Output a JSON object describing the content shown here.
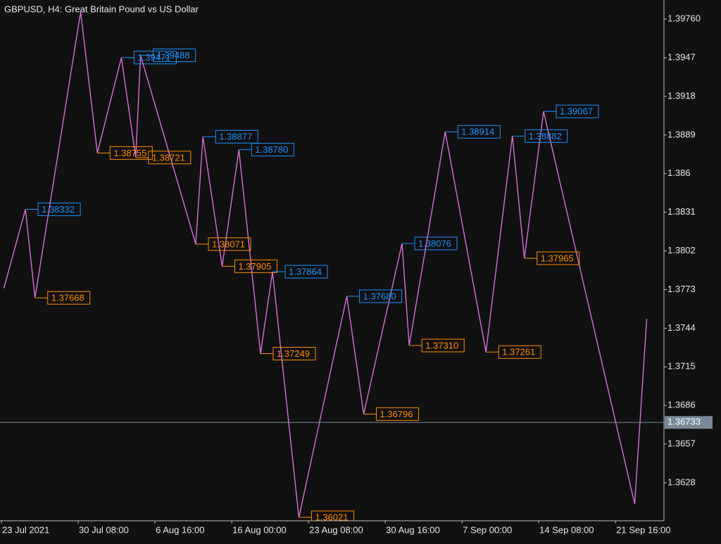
{
  "chart_data": {
    "type": "line",
    "title": "GBPUSD, H4:  Great Britain Pound vs US Dollar",
    "x": [
      1,
      10,
      14,
      33,
      40,
      50,
      56,
      58,
      81,
      84,
      92,
      99,
      108,
      113,
      124,
      144,
      151,
      167,
      170,
      185,
      202,
      213,
      218,
      226,
      264,
      269
    ],
    "values": [
      1.3774,
      1.38332,
      1.37668,
      1.39813,
      1.38755,
      1.39471,
      1.38721,
      1.39488,
      1.38071,
      1.38877,
      1.37905,
      1.3878,
      1.37249,
      1.37864,
      1.36021,
      1.3768,
      1.36796,
      1.38076,
      1.3731,
      1.38914,
      1.37261,
      1.38882,
      1.37965,
      1.39067,
      1.36122,
      1.3751
    ],
    "value_labels": [
      null,
      "1.38332",
      "1.37668",
      null,
      "1.38755",
      "1.39471",
      "1.38721",
      "1.39488",
      "1.38071",
      "1.38877",
      "1.37905",
      "1.38780",
      "1.37249",
      "1.37864",
      "1.36021",
      "1.37680",
      "1.36796",
      "1.38076",
      "1.37310",
      "1.38914",
      "1.37261",
      "1.38882",
      "1.37965",
      "1.39067",
      null,
      null
    ],
    "color": "#da70d6",
    "high_color": "#1e90ff",
    "low_color": "#ff8c00",
    "xlim": [
      -0.6,
      276.2
    ],
    "xticks": [
      {
        "value": 0,
        "label": "23 Jul 2021"
      },
      {
        "value": 32,
        "label": "30 Jul 08:00"
      },
      {
        "value": 64,
        "label": "6 Aug 16:00"
      },
      {
        "value": 96,
        "label": "16 Aug 00:00"
      },
      {
        "value": 128,
        "label": "23 Aug 08:00"
      },
      {
        "value": 160,
        "label": "30 Aug 16:00"
      },
      {
        "value": 192,
        "label": "7 Sep 00:00"
      },
      {
        "value": 224,
        "label": "14 Sep 08:00"
      },
      {
        "value": 256,
        "label": "21 Sep 16:00"
      }
    ],
    "ylim": [
      1.35995,
      1.39903
    ],
    "yticks": [
      {
        "value": 1.3976,
        "label": "1.39760"
      },
      1.3947,
      1.3918,
      1.3889,
      1.386,
      1.3831,
      1.3802,
      1.3773,
      1.3744,
      1.3715,
      1.3686,
      1.3657,
      1.3628
    ],
    "current": {
      "value": 1.36733,
      "label": "1.36733"
    },
    "grid": false
  }
}
